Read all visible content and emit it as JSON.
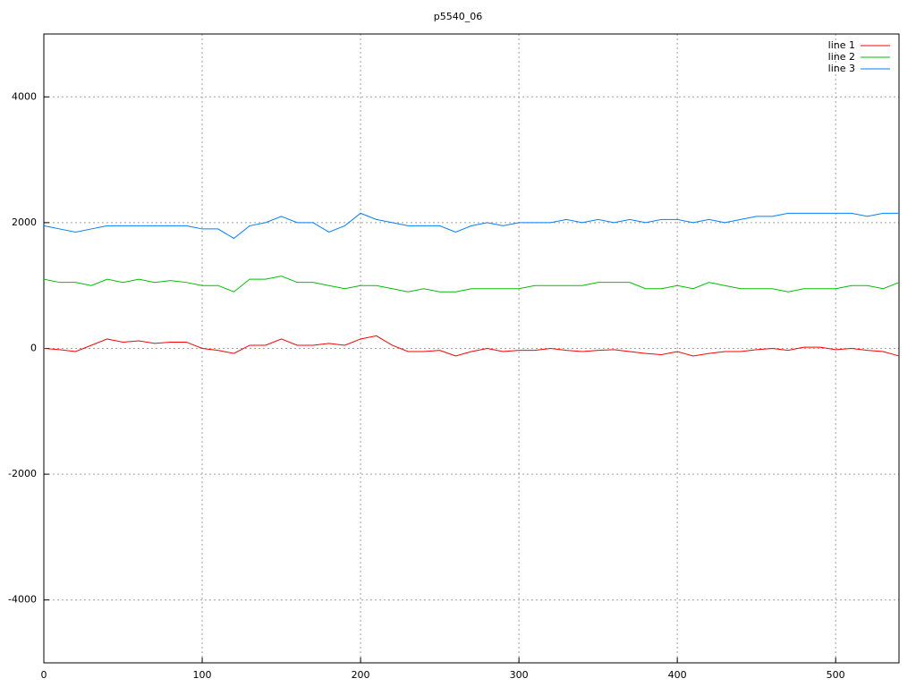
{
  "chart_data": {
    "type": "line",
    "title": "p5540_06",
    "x": [
      0,
      10,
      20,
      30,
      40,
      50,
      60,
      70,
      80,
      90,
      100,
      110,
      120,
      130,
      140,
      150,
      160,
      170,
      180,
      190,
      200,
      210,
      220,
      230,
      240,
      250,
      260,
      270,
      280,
      290,
      300,
      310,
      320,
      330,
      340,
      350,
      360,
      370,
      380,
      390,
      400,
      410,
      420,
      430,
      440,
      450,
      460,
      470,
      480,
      490,
      500,
      510,
      520,
      530,
      540
    ],
    "series": [
      {
        "name": "line 1",
        "color": "#ff0000",
        "values": [
          0,
          -20,
          -50,
          50,
          150,
          100,
          120,
          80,
          100,
          100,
          0,
          -30,
          -80,
          50,
          50,
          150,
          50,
          50,
          80,
          50,
          150,
          200,
          50,
          -50,
          -50,
          -30,
          -120,
          -50,
          0,
          -50,
          -30,
          -30,
          0,
          -30,
          -50,
          -30,
          -20,
          -50,
          -80,
          -100,
          -50,
          -120,
          -80,
          -50,
          -50,
          -20,
          0,
          -30,
          20,
          20,
          -20,
          0,
          -30,
          -50,
          -120
        ]
      },
      {
        "name": "line 2",
        "color": "#00c000",
        "values": [
          1100,
          1050,
          1050,
          1000,
          1100,
          1050,
          1100,
          1050,
          1080,
          1050,
          1000,
          1000,
          900,
          1100,
          1100,
          1150,
          1050,
          1050,
          1000,
          950,
          1000,
          1000,
          950,
          900,
          950,
          900,
          900,
          950,
          950,
          950,
          950,
          1000,
          1000,
          1000,
          1000,
          1050,
          1050,
          1050,
          950,
          950,
          1000,
          950,
          1050,
          1000,
          950,
          950,
          950,
          900,
          950,
          950,
          950,
          1000,
          1000,
          950,
          1050
        ]
      },
      {
        "name": "line 3",
        "color": "#0080ff",
        "values": [
          1950,
          1900,
          1850,
          1900,
          1950,
          1950,
          1950,
          1950,
          1950,
          1950,
          1900,
          1900,
          1750,
          1950,
          2000,
          2100,
          2000,
          2000,
          1850,
          1950,
          2150,
          2050,
          2000,
          1950,
          1950,
          1950,
          1850,
          1950,
          2000,
          1950,
          2000,
          2000,
          2000,
          2050,
          2000,
          2050,
          2000,
          2050,
          2000,
          2050,
          2050,
          2000,
          2050,
          2000,
          2050,
          2100,
          2100,
          2150,
          2150,
          2150,
          2150,
          2150,
          2100,
          2150,
          2150
        ]
      }
    ],
    "xlim": [
      0,
      540
    ],
    "ylim": [
      -5000,
      5000
    ],
    "xticks": [
      0,
      100,
      200,
      300,
      400,
      500
    ],
    "yticks": [
      -4000,
      -2000,
      0,
      2000,
      4000
    ],
    "grid": true,
    "legend": "top-right"
  }
}
